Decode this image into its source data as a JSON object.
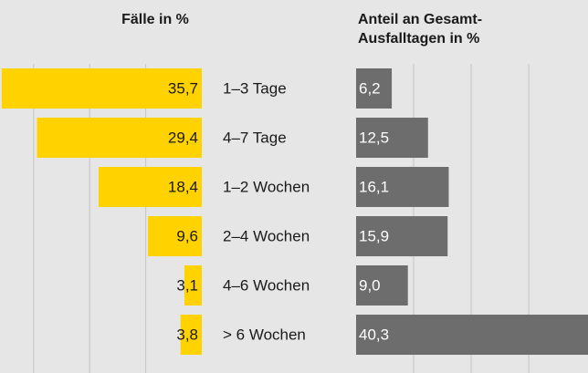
{
  "chart_data": [
    {
      "type": "bar",
      "orientation": "left",
      "title": "Fälle in %",
      "categories": [
        "1–3 Tage",
        "4–7 Tage",
        "1–2 Wochen",
        "2–4 Wochen",
        "4–6 Wochen",
        "> 6 Wochen"
      ],
      "values": [
        35.7,
        29.4,
        18.4,
        9.6,
        3.1,
        3.8
      ],
      "value_labels": [
        "35,7",
        "29,4",
        "18,4",
        "9,6",
        "3,1",
        "3,8"
      ],
      "color": "#ffd200",
      "xlim": [
        0,
        36
      ],
      "xticks": [
        10,
        20,
        30
      ],
      "grid": true
    },
    {
      "type": "bar",
      "orientation": "right",
      "title": [
        "Anteil an Gesamt-",
        "Ausfalltagen in %"
      ],
      "values": [
        6.2,
        12.5,
        16.1,
        15.9,
        9.0,
        40.3
      ],
      "value_labels": [
        "6,2",
        "12,5",
        "16,1",
        "15,9",
        "9,0",
        "40,3"
      ],
      "color": "#6d6d6d",
      "xlim": [
        0,
        40.3
      ],
      "xticks": [
        10,
        20,
        30
      ],
      "grid": true
    }
  ]
}
